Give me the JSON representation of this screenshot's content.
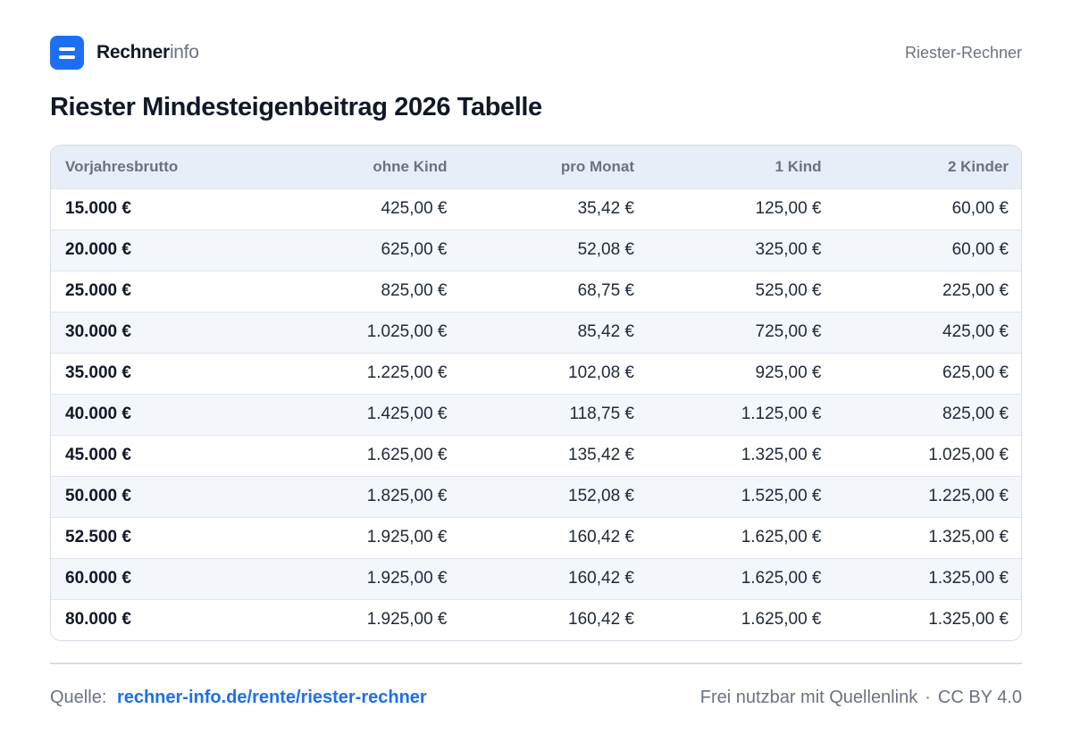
{
  "header": {
    "brand_main": "Rechner",
    "brand_sub": "info",
    "right_label": "Riester-Rechner"
  },
  "title": "Riester Mindesteigenbeitrag 2026 Tabelle",
  "table": {
    "columns": [
      "Vorjahresbrutto",
      "ohne Kind",
      "pro Monat",
      "1 Kind",
      "2 Kinder"
    ],
    "rows": [
      [
        "15.000 €",
        "425,00 €",
        "35,42 €",
        "125,00 €",
        "60,00 €"
      ],
      [
        "20.000 €",
        "625,00 €",
        "52,08 €",
        "325,00 €",
        "60,00 €"
      ],
      [
        "25.000 €",
        "825,00 €",
        "68,75 €",
        "525,00 €",
        "225,00 €"
      ],
      [
        "30.000 €",
        "1.025,00 €",
        "85,42 €",
        "725,00 €",
        "425,00 €"
      ],
      [
        "35.000 €",
        "1.225,00 €",
        "102,08 €",
        "925,00 €",
        "625,00 €"
      ],
      [
        "40.000 €",
        "1.425,00 €",
        "118,75 €",
        "1.125,00 €",
        "825,00 €"
      ],
      [
        "45.000 €",
        "1.625,00 €",
        "135,42 €",
        "1.325,00 €",
        "1.025,00 €"
      ],
      [
        "50.000 €",
        "1.825,00 €",
        "152,08 €",
        "1.525,00 €",
        "1.225,00 €"
      ],
      [
        "52.500 €",
        "1.925,00 €",
        "160,42 €",
        "1.625,00 €",
        "1.325,00 €"
      ],
      [
        "60.000 €",
        "1.925,00 €",
        "160,42 €",
        "1.625,00 €",
        "1.325,00 €"
      ],
      [
        "80.000 €",
        "1.925,00 €",
        "160,42 €",
        "1.625,00 €",
        "1.325,00 €"
      ]
    ]
  },
  "footer": {
    "source_label": "Quelle:",
    "source_link": "rechner-info.de/rente/riester-rechner",
    "license_text": "Frei nutzbar mit Quellenlink",
    "separator": "·",
    "license": "CC BY 4.0"
  },
  "colors": {
    "accent": "#1d6ff2",
    "header_bg": "#e8eef7",
    "row_alt_bg": "#f3f6fb",
    "border": "#d6dce6"
  }
}
